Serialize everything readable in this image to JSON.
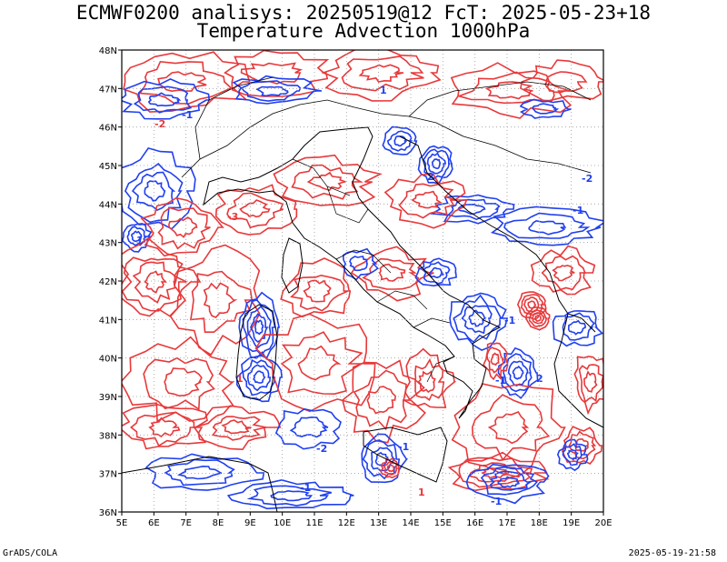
{
  "header": {
    "line1": "ECMWF0200 analisys: 20250519@12 FcT: 2025-05-23+18",
    "line2": "Temperature Advection 1000hPa"
  },
  "map": {
    "lon_labels": [
      "5E",
      "6E",
      "7E",
      "8E",
      "9E",
      "10E",
      "11E",
      "12E",
      "13E",
      "14E",
      "15E",
      "16E",
      "17E",
      "18E",
      "19E",
      "20E"
    ],
    "lat_labels": [
      "48N",
      "47N",
      "46N",
      "45N",
      "44N",
      "43N",
      "42N",
      "41N",
      "40N",
      "39N",
      "38N",
      "37N",
      "36N"
    ],
    "lon_range": [
      5,
      20
    ],
    "lat_range": [
      36,
      48
    ],
    "grid": "dotted",
    "colors": {
      "positive": "#e8383a",
      "negative": "#2040f0",
      "coast": "#000000",
      "grid": "#9a9a9a"
    },
    "contour_labels": [
      "1",
      "-1",
      "2",
      "-2",
      "-3",
      "1",
      "-1",
      "-1",
      "2",
      "-2",
      "-1",
      "1",
      "-1",
      "-2",
      "-1",
      "1",
      "-1"
    ]
  },
  "footer": {
    "left": "GrADS/COLA",
    "right": "2025-05-19-21:58"
  }
}
